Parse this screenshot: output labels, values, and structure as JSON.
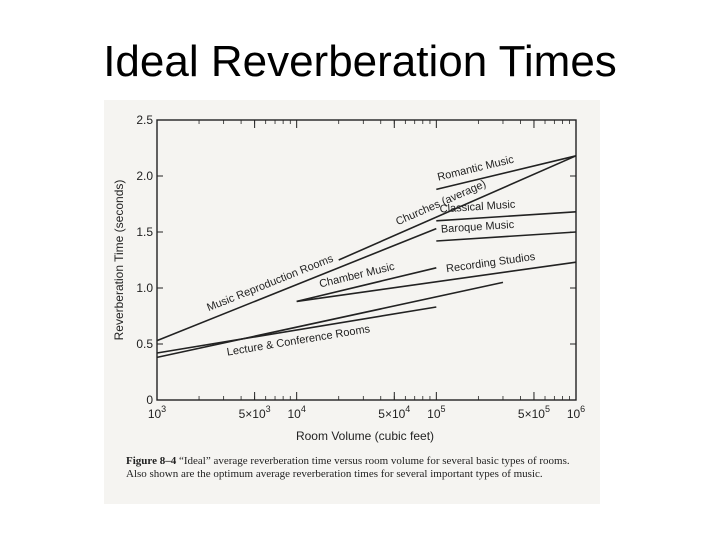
{
  "slide": {
    "title": "Ideal Reverberation Times"
  },
  "chart_data": {
    "type": "line",
    "xlabel": "Room Volume (cubic feet)",
    "ylabel": "Reverberation Time (seconds)",
    "x_scale": "log",
    "xlim": [
      1000,
      1000000
    ],
    "ylim": [
      0,
      2.5
    ],
    "grid": false,
    "x_ticks": [
      {
        "value": 1000,
        "base": "10",
        "exp": "3",
        "mult": ""
      },
      {
        "value": 5000,
        "base": "10",
        "exp": "3",
        "mult": "5×"
      },
      {
        "value": 10000,
        "base": "10",
        "exp": "4",
        "mult": ""
      },
      {
        "value": 50000,
        "base": "10",
        "exp": "4",
        "mult": "5×"
      },
      {
        "value": 100000,
        "base": "10",
        "exp": "5",
        "mult": ""
      },
      {
        "value": 500000,
        "base": "10",
        "exp": "5",
        "mult": "5×"
      },
      {
        "value": 1000000,
        "base": "10",
        "exp": "6",
        "mult": ""
      }
    ],
    "y_ticks": [
      "0",
      "0.5",
      "1.0",
      "1.5",
      "2.0",
      "2.5"
    ],
    "y_tick_values": [
      0,
      0.5,
      1.0,
      1.5,
      2.0,
      2.5
    ],
    "series": [
      {
        "name": "Romantic Music",
        "x": [
          100000,
          1000000
        ],
        "y": [
          1.88,
          2.18
        ]
      },
      {
        "name": "Churches (average)",
        "x": [
          20000,
          1000000
        ],
        "y": [
          1.25,
          2.18
        ]
      },
      {
        "name": "Classical Music",
        "x": [
          100000,
          1000000
        ],
        "y": [
          1.6,
          1.68
        ]
      },
      {
        "name": "Baroque Music",
        "x": [
          100000,
          1000000
        ],
        "y": [
          1.42,
          1.5
        ]
      },
      {
        "name": "Music Reproduction Rooms",
        "x": [
          1000,
          100000
        ],
        "y": [
          0.53,
          1.53
        ]
      },
      {
        "name": "Chamber Music",
        "x": [
          10000,
          100000
        ],
        "y": [
          0.88,
          1.18
        ]
      },
      {
        "name": "Recording Studios",
        "x": [
          10000,
          1000000
        ],
        "y": [
          0.88,
          1.23
        ]
      },
      {
        "name": "Lecture & Conference Rooms",
        "x": [
          1000,
          100000
        ],
        "y": [
          0.42,
          0.83
        ]
      },
      {
        "name": "",
        "x": [
          1000,
          300000
        ],
        "y": [
          0.38,
          1.05
        ]
      }
    ]
  },
  "caption": {
    "figure": "Figure 8–4",
    "text": "“Ideal” average reverberation time versus room volume for several basic types of rooms. Also shown are the optimum average reverberation times for several important types of music."
  }
}
